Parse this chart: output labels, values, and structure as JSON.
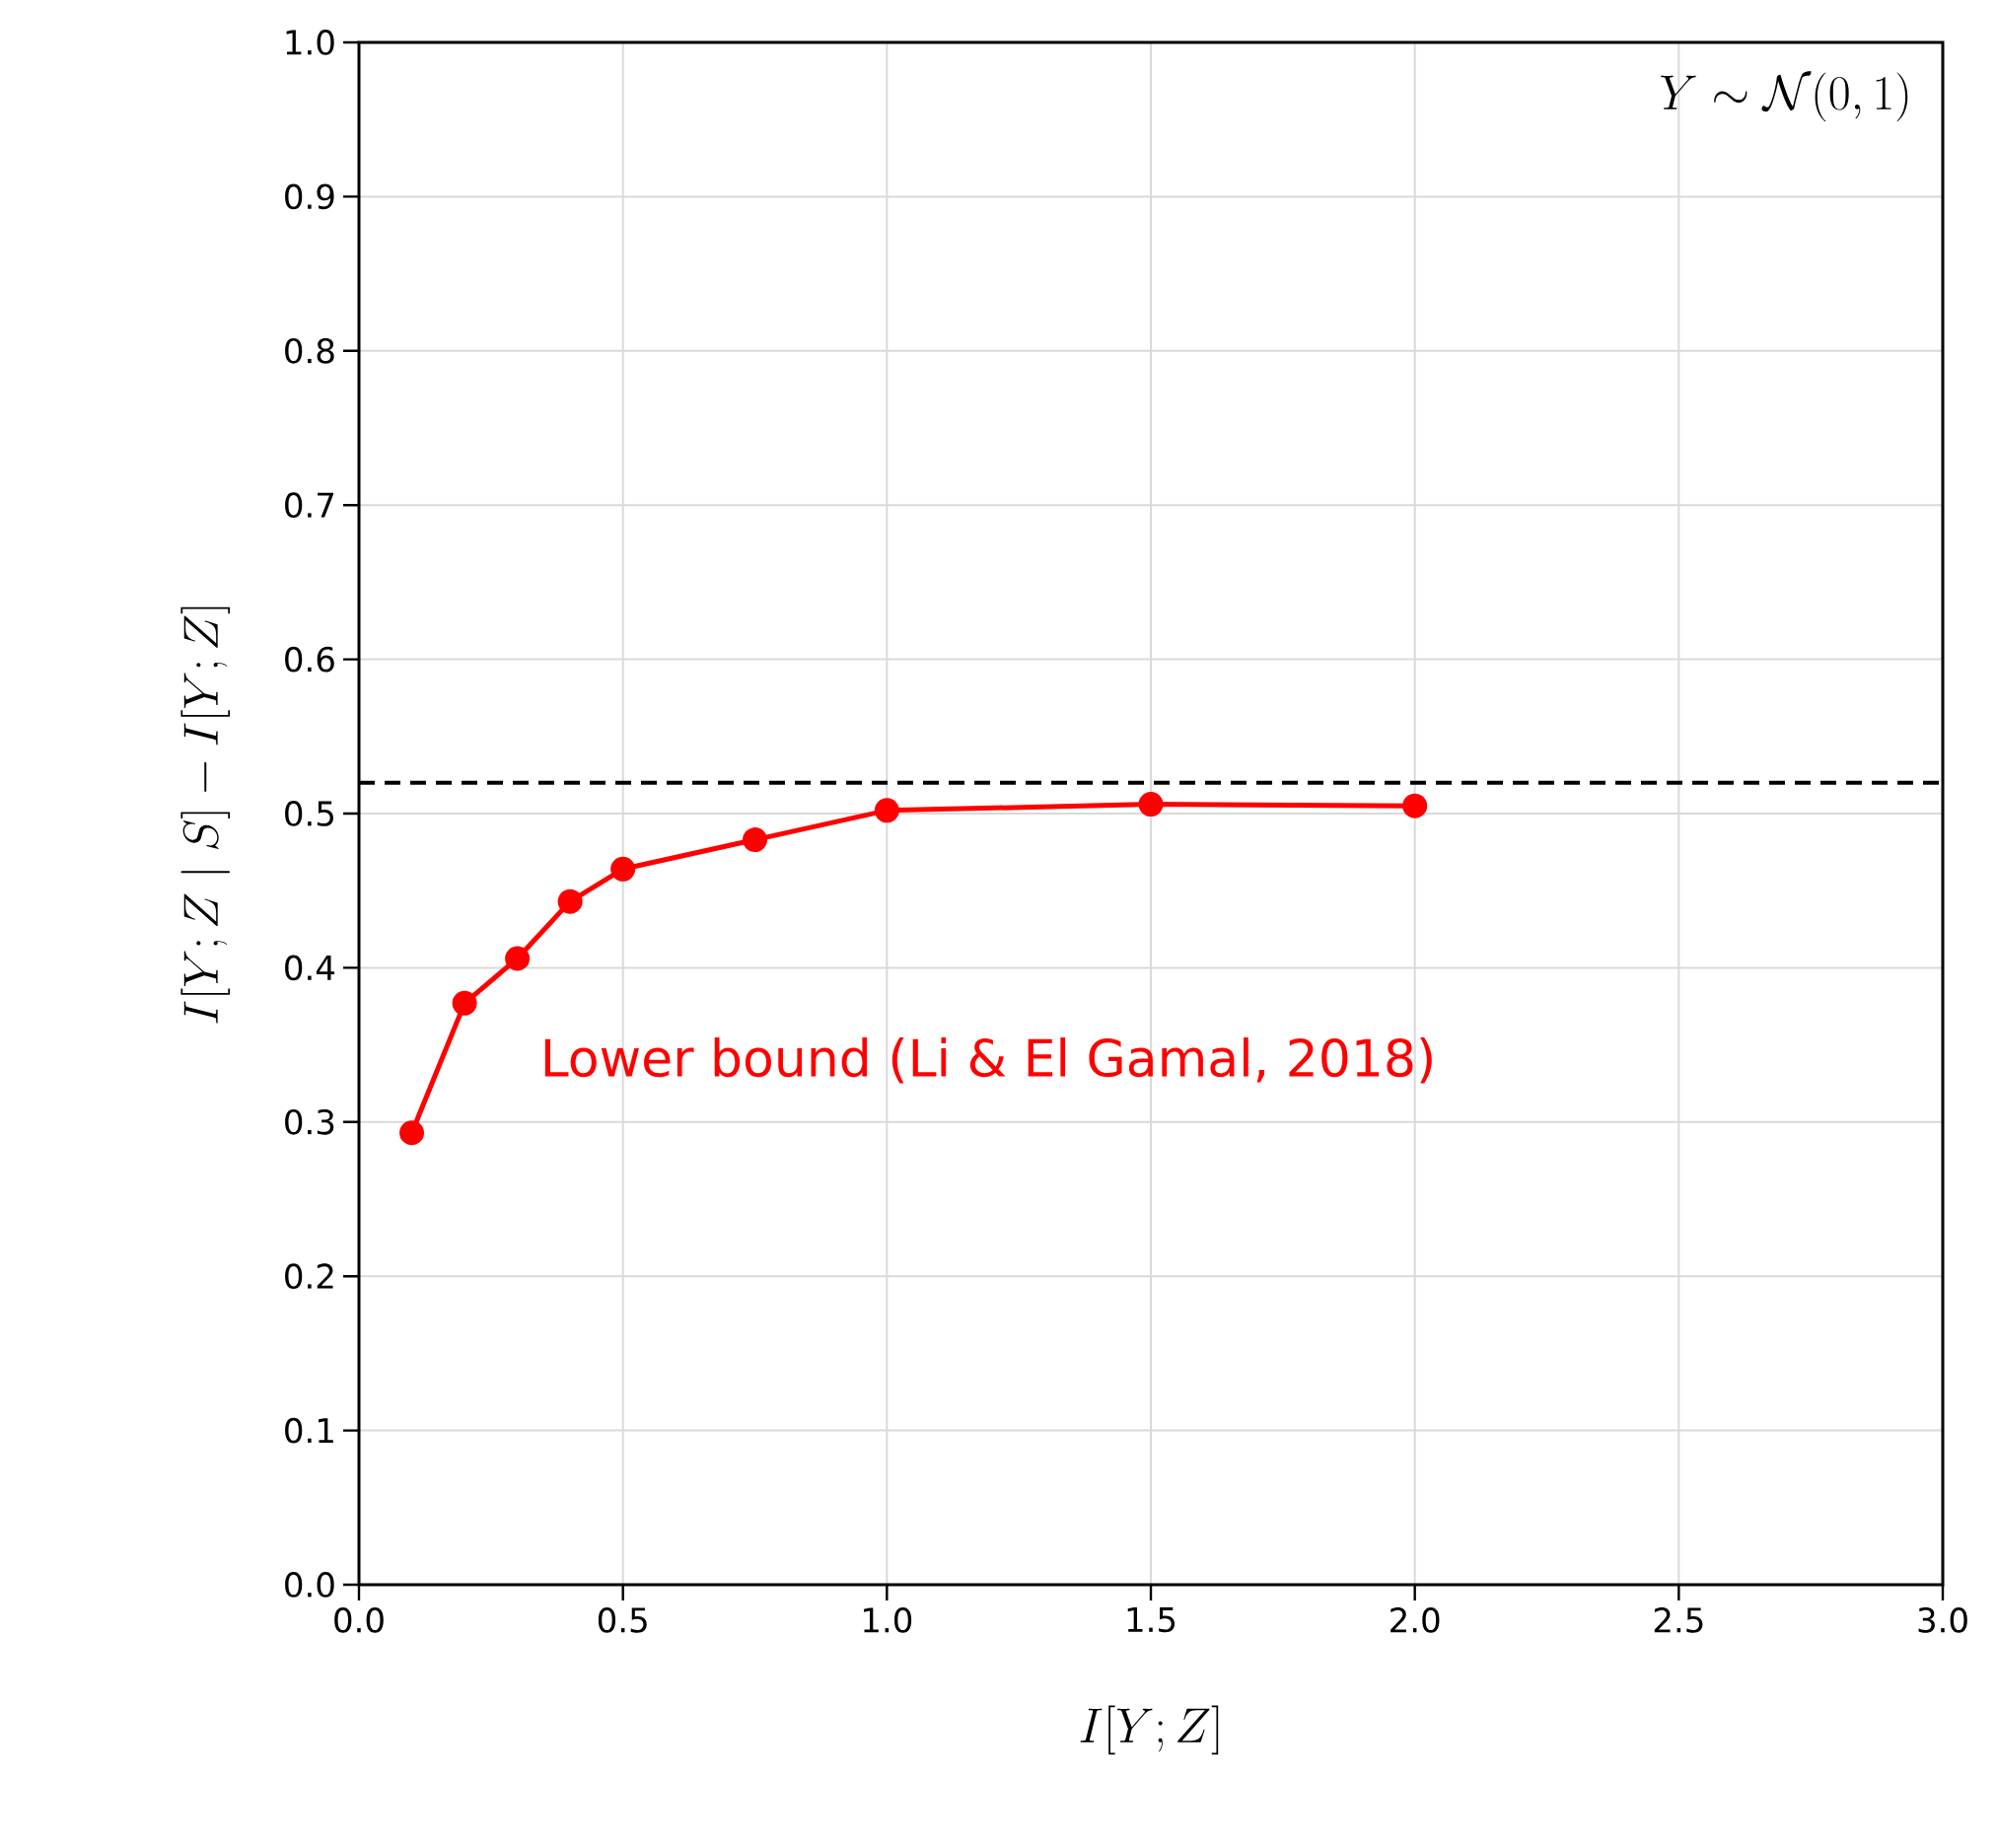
{
  "chart_data": {
    "type": "line",
    "xlabel": "I[Y;Z]",
    "ylabel": "I[Y;Z \\mid S] - I[Y;Z]",
    "annotations": [
      "Y \\sim \\mathcal{N}(0,1)"
    ],
    "x": [
      0.1,
      0.2,
      0.3,
      0.4,
      0.5,
      0.75,
      1.0,
      1.5,
      2.0
    ],
    "series": [
      {
        "name": "Lower bound (Li & El Gamal, 2018)",
        "color": "#ff0000",
        "values": [
          0.293,
          0.377,
          0.406,
          0.443,
          0.464,
          0.483,
          0.502,
          0.506,
          0.505
        ]
      }
    ],
    "xlim": [
      0,
      3
    ],
    "ylim": [
      0,
      1
    ],
    "xticks": [
      {
        "value": 0,
        "label": "0.0"
      },
      {
        "value": 0.5,
        "label": "0.5"
      },
      {
        "value": 1,
        "label": "1.0"
      },
      {
        "value": 1.5,
        "label": "1.5"
      },
      {
        "value": 2,
        "label": "2.0"
      },
      {
        "value": 2.5,
        "label": "2.5"
      },
      {
        "value": 3,
        "label": "3.0"
      }
    ],
    "yticks": [
      {
        "value": 0,
        "label": "0.0"
      },
      {
        "value": 0.1,
        "label": "0.1"
      },
      {
        "value": 0.2,
        "label": "0.2"
      },
      {
        "value": 0.3,
        "label": "0.3"
      },
      {
        "value": 0.4,
        "label": "0.4"
      },
      {
        "value": 0.5,
        "label": "0.5"
      },
      {
        "value": 0.6,
        "label": "0.6"
      },
      {
        "value": 0.7,
        "label": "0.7"
      },
      {
        "value": 0.8,
        "label": "0.8"
      },
      {
        "value": 0.9,
        "label": "0.9"
      },
      {
        "value": 1,
        "label": "1.0"
      }
    ],
    "ref_lines": [
      {
        "axis": "y",
        "value": 0.52,
        "color": "#000000",
        "line_style": "dashed"
      }
    ],
    "grid": true,
    "marker": "circle",
    "line_style": "solid"
  }
}
